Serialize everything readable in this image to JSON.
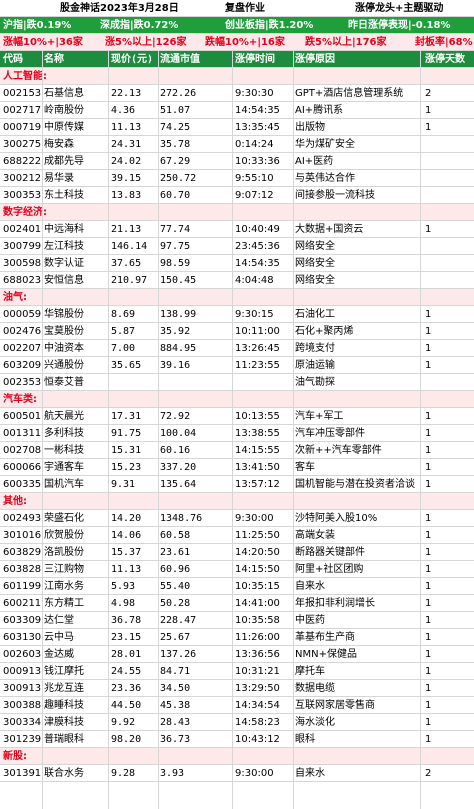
{
  "title": {
    "left": "股金神话2023年3月28日",
    "mid": "复盘作业",
    "right": "涨停龙头+主题驱动"
  },
  "stats1": [
    "沪指|跌0.19%",
    "深成指|跌0.72%",
    "创业板指|跌1.20%",
    "昨日涨停表现|-0.18%"
  ],
  "stats2": [
    "涨幅10%+|36家",
    "涨5%以上|126家",
    "跌幅10%+|16家",
    "跌5%以上|176家",
    "封板率|68%"
  ],
  "headers": [
    "代码",
    "名称",
    "现价(元)",
    "流通市值",
    "涨停时间",
    "涨停原因",
    "涨停天数"
  ],
  "sections": [
    {
      "name": "人工智能:",
      "rows": [
        [
          "002153",
          "石基信息",
          "22.13",
          "272.26",
          "9:30:30",
          "GPT+酒店信息管理系统",
          "2"
        ],
        [
          "002717",
          "岭南股份",
          "4.36",
          "51.07",
          "14:54:35",
          "AI+腾讯系",
          "1"
        ],
        [
          "000719",
          "中原传媒",
          "11.13",
          "74.25",
          "13:35:45",
          "出版物",
          "1"
        ],
        [
          "300275",
          "梅安森",
          "24.31",
          "35.78",
          "0:14:24",
          "华为煤矿安全",
          ""
        ],
        [
          "688222",
          "成都先导",
          "24.02",
          "67.29",
          "10:33:36",
          "AI+医药",
          ""
        ],
        [
          "300212",
          "易华录",
          "39.15",
          "250.72",
          "9:55:10",
          "与英伟达合作",
          ""
        ],
        [
          "300353",
          "东土科技",
          "13.83",
          "60.70",
          "9:07:12",
          "间接参股一流科技",
          ""
        ]
      ]
    },
    {
      "name": "数字经济:",
      "rows": [
        [
          "002401",
          "中远海科",
          "21.13",
          "77.74",
          "10:40:49",
          "大数据+国资云",
          "1"
        ],
        [
          "300799",
          "左江科技",
          "146.14",
          "97.75",
          "23:45:36",
          "网络安全",
          ""
        ],
        [
          "300598",
          "数字认证",
          "37.65",
          "98.59",
          "14:54:35",
          "网络安全",
          ""
        ],
        [
          "688023",
          "安恒信息",
          "210.97",
          "150.45",
          "4:04:48",
          "网络安全",
          ""
        ]
      ]
    },
    {
      "name": "油气:",
      "rows": [
        [
          "000059",
          "华锦股份",
          "8.69",
          "138.99",
          "9:30:15",
          "石油化工",
          "1"
        ],
        [
          "002476",
          "宝莫股份",
          "5.87",
          "35.92",
          "10:11:00",
          "石化+聚丙烯",
          "1"
        ],
        [
          "002207",
          "中油资本",
          "7.00",
          "884.95",
          "13:26:45",
          "跨境支付",
          "1"
        ],
        [
          "603209",
          "兴通股份",
          "35.65",
          "39.16",
          "11:23:55",
          "原油运输",
          "1"
        ],
        [
          "002353",
          "恒泰艾普",
          "",
          "",
          "",
          "油气勘探",
          ""
        ]
      ]
    },
    {
      "name": "汽车类:",
      "rows": [
        [
          "600501",
          "航天晨光",
          "17.31",
          "72.92",
          "10:13:55",
          "汽车+军工",
          "1"
        ],
        [
          "001311",
          "多利科技",
          "91.75",
          "100.04",
          "13:38:55",
          "汽车冲压零部件",
          "1"
        ],
        [
          "002708",
          "一彬科技",
          "15.31",
          "60.16",
          "14:15:55",
          "次新++汽车零部件",
          "1"
        ],
        [
          "600066",
          "宇通客车",
          "15.23",
          "337.20",
          "13:41:50",
          "客车",
          "1"
        ],
        [
          "600335",
          "国机汽车",
          "9.31",
          "135.64",
          "13:57:12",
          "国机智能与潜在投资者洽谈",
          "1"
        ]
      ]
    },
    {
      "name": "其他:",
      "rows": [
        [
          "002493",
          "荣盛石化",
          "14.20",
          "1348.76",
          "9:30:00",
          "沙特阿美入股10%",
          "1"
        ],
        [
          "301016",
          "欣贺股份",
          "14.06",
          "60.58",
          "11:25:50",
          "高端女装",
          "1"
        ],
        [
          "603829",
          "洛凯股份",
          "15.37",
          "23.61",
          "14:20:50",
          "断路器关键部件",
          "1"
        ],
        [
          "603828",
          "三江购物",
          "11.13",
          "60.96",
          "14:15:50",
          "阿里+社区团购",
          "1"
        ],
        [
          "601199",
          "江南水务",
          "5.93",
          "55.40",
          "10:35:15",
          "自来水",
          "1"
        ],
        [
          "600211",
          "东方精工",
          "4.98",
          "50.28",
          "14:41:00",
          "年报扣非利润增长",
          "1"
        ],
        [
          "603309",
          "达仁堂",
          "36.78",
          "228.47",
          "10:35:58",
          "中医药",
          "1"
        ],
        [
          "603130",
          "云中马",
          "23.15",
          "25.67",
          "11:26:00",
          "革基布生产商",
          "1"
        ],
        [
          "002603",
          "金达威",
          "28.01",
          "137.26",
          "13:36:56",
          "NMN+保健品",
          "1"
        ],
        [
          "000913",
          "钱江摩托",
          "24.55",
          "84.71",
          "10:31:21",
          "摩托车",
          "1"
        ],
        [
          "300913",
          "兆龙互连",
          "23.36",
          "34.50",
          "13:29:50",
          "数据电缆",
          "1"
        ],
        [
          "300388",
          "趣睡科技",
          "44.50",
          "45.38",
          "14:34:54",
          "互联网家居零售商",
          "1"
        ],
        [
          "300334",
          "津膜科技",
          "9.92",
          "28.43",
          "14:58:23",
          "海水淡化",
          "1"
        ],
        [
          "301239",
          "普瑞眼科",
          "98.20",
          "36.73",
          "10:43:12",
          "眼科",
          "1"
        ]
      ]
    },
    {
      "name": "新股:",
      "rows": [
        [
          "301391",
          "联合水务",
          "9.28",
          "3.93",
          "9:30:00",
          "自来水",
          "2"
        ]
      ]
    }
  ]
}
